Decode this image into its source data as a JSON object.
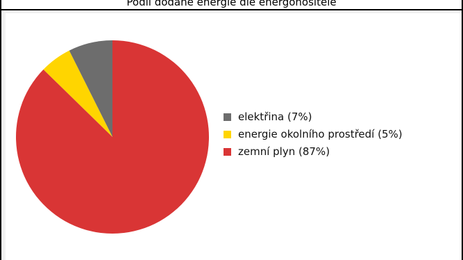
{
  "title": "Podíl dodané energie dle energonositele",
  "chart_data": {
    "type": "pie",
    "title": "Podíl dodané energie dle energonositele",
    "start_angle_deg": 0,
    "direction": "counterclockwise",
    "legend_position": "right",
    "slices": [
      {
        "label": "elektřina (7%)",
        "value": 7.4,
        "color": "#6d6d6d"
      },
      {
        "label": "energie okolního prostředí (5%)",
        "value": 5.3,
        "color": "#ffd500"
      },
      {
        "label": "zemní plyn (87%)",
        "value": 87.3,
        "color": "#d93535"
      }
    ]
  }
}
